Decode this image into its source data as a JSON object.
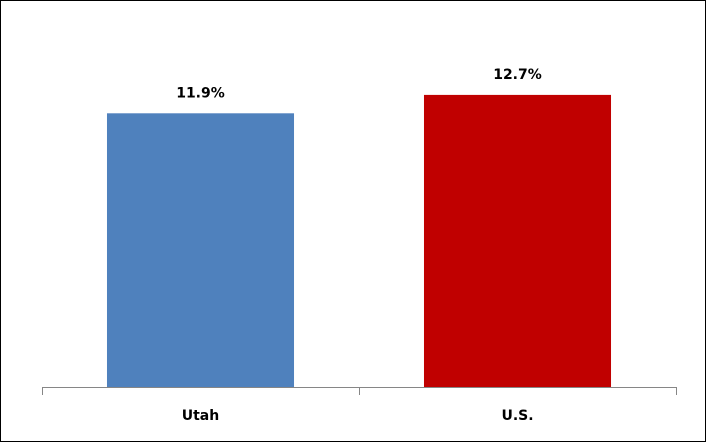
{
  "chart_data": {
    "type": "bar",
    "categories": [
      "Utah",
      "U.S."
    ],
    "values": [
      11.9,
      12.7
    ],
    "value_labels": [
      "11.9%",
      "12.7%"
    ],
    "colors": [
      "#4f81bd",
      "#c00000"
    ],
    "ylim": [
      0,
      14
    ]
  }
}
